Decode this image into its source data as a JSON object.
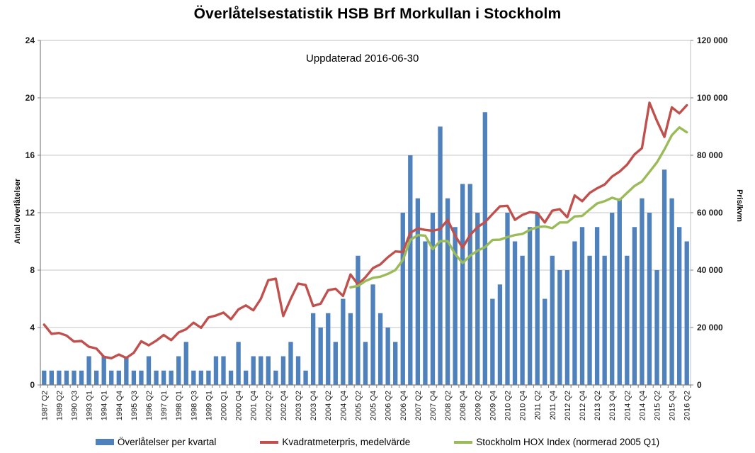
{
  "title": "Överlåtelsestatistik HSB Brf Morkullan i Stockholm",
  "subtitle": "Uppdaterad 2016-06-30",
  "colors": {
    "bar": "#4F81BD",
    "price_line": "#C0504D",
    "hox_line": "#9BBB59",
    "grid": "#C6C6C6",
    "border": "#BFBFBF",
    "axis": "#808080",
    "tick_text": "#1a1a1a"
  },
  "chart_data": {
    "type": "bar",
    "subtype": "combo: bars (left axis) + 2 lines (right axis)",
    "title": "Överlåtelsestatistik HSB Brf Morkullan i Stockholm",
    "annotation": "Uppdaterad 2016-06-30",
    "grid": true,
    "legend_position": "bottom",
    "categories": [
      "1987 Q2",
      "",
      "1989 Q2",
      "",
      "1990 Q3",
      "",
      "1993 Q1",
      "",
      "1994 Q1",
      "",
      "1994 Q4",
      "",
      "1995 Q3",
      "",
      "1996 Q2",
      "",
      "1997 Q1",
      "",
      "1998 Q1",
      "",
      "1998 Q3",
      "",
      "1999 Q1",
      "",
      "2000 Q1",
      "",
      "2000 Q4",
      "",
      "2001 Q4",
      "",
      "2002 Q2",
      "",
      "2002 Q4",
      "",
      "2003 Q2",
      "",
      "2003 Q4",
      "",
      "2004 Q2",
      "",
      "2004 Q4",
      "",
      "2005 Q2",
      "",
      "2005 Q4",
      "",
      "2006 Q2",
      "",
      "2006 Q4",
      "",
      "2007 Q2",
      "",
      "2007 Q4",
      "",
      "2008 Q2",
      "",
      "2008 Q4",
      "",
      "2009 Q2",
      "",
      "2009 Q4",
      "",
      "2010 Q2",
      "",
      "2010 Q4",
      "",
      "2011 Q2",
      "",
      "2011 Q4",
      "",
      "2012 Q2",
      "",
      "2012 Q4",
      "",
      "2013 Q2",
      "",
      "2013 Q4",
      "",
      "2014 Q2",
      "",
      "2014 Q4",
      "",
      "2015 Q2",
      "",
      "2015 Q4",
      "",
      "2016 Q2"
    ],
    "series": [
      {
        "name": "Överlåtelser per kvartal",
        "type": "bar",
        "axis": "left",
        "color": "#4F81BD",
        "values": [
          1,
          1,
          1,
          1,
          1,
          1,
          2,
          1,
          2,
          1,
          1,
          2,
          1,
          1,
          2,
          1,
          1,
          1,
          2,
          3,
          1,
          1,
          1,
          2,
          2,
          1,
          3,
          1,
          2,
          2,
          2,
          1,
          2,
          3,
          2,
          1,
          5,
          4,
          5,
          3,
          6,
          5,
          9,
          3,
          7,
          5,
          4,
          3,
          12,
          16,
          13,
          10,
          12,
          18,
          13,
          11,
          14,
          14,
          12,
          19,
          6,
          7,
          12,
          10,
          9,
          11,
          12,
          6,
          9,
          8,
          8,
          10,
          11,
          9,
          11,
          9,
          12,
          13,
          9,
          11,
          13,
          12,
          8,
          15,
          13,
          11,
          10
        ]
      },
      {
        "name": "Kvadratmeterpris, medelvärde",
        "type": "line",
        "axis": "right",
        "color": "#C0504D",
        "values": [
          21000,
          17800,
          18100,
          17200,
          15100,
          15300,
          13300,
          12700,
          9800,
          9300,
          10600,
          9400,
          11200,
          15200,
          13800,
          15400,
          17400,
          15600,
          18300,
          19400,
          21700,
          19900,
          23500,
          24200,
          25200,
          22900,
          26300,
          27700,
          26000,
          30000,
          36500,
          37000,
          24000,
          30000,
          35300,
          34800,
          27500,
          28300,
          33000,
          33500,
          31000,
          38500,
          35000,
          37500,
          40700,
          42000,
          44500,
          46500,
          46300,
          53000,
          54500,
          54000,
          53700,
          54300,
          57500,
          52000,
          47800,
          52200,
          55000,
          56700,
          59500,
          62200,
          62400,
          57500,
          59200,
          60200,
          59900,
          56600,
          60700,
          61200,
          58400,
          66000,
          64000,
          66900,
          68500,
          69800,
          72600,
          74300,
          76700,
          80300,
          82500,
          98300,
          92000,
          86400,
          96700,
          94600,
          97400
        ]
      },
      {
        "name": "Stockholm HOX Index (normerad 2005 Q1)",
        "type": "line",
        "axis": "right",
        "color": "#9BBB59",
        "values": [
          null,
          null,
          null,
          null,
          null,
          null,
          null,
          null,
          null,
          null,
          null,
          null,
          null,
          null,
          null,
          null,
          null,
          null,
          null,
          null,
          null,
          null,
          null,
          null,
          null,
          null,
          null,
          null,
          null,
          null,
          null,
          null,
          null,
          null,
          null,
          null,
          null,
          null,
          null,
          null,
          null,
          34000,
          34500,
          36200,
          37300,
          37700,
          38700,
          40000,
          43500,
          50500,
          52200,
          52000,
          47300,
          50100,
          50100,
          45600,
          42500,
          45000,
          46800,
          48000,
          50500,
          50600,
          51500,
          52200,
          52600,
          54000,
          55000,
          55200,
          54600,
          56600,
          56600,
          58700,
          58900,
          61100,
          63200,
          64000,
          65200,
          64400,
          66900,
          69300,
          70900,
          74200,
          77500,
          82000,
          87000,
          89700,
          88000
        ]
      }
    ],
    "left_axis": {
      "title": "Antal överlåtelser",
      "min": 0,
      "max": 24,
      "step": 4,
      "ticks": [
        0,
        4,
        8,
        12,
        16,
        20,
        24
      ],
      "tick_labels": [
        "0",
        "4",
        "8",
        "12",
        "16",
        "20",
        "24"
      ]
    },
    "right_axis": {
      "title": "Pris/kvm",
      "min": 0,
      "max": 120000,
      "step": 20000,
      "ticks": [
        0,
        20000,
        40000,
        60000,
        80000,
        100000,
        120000
      ],
      "tick_labels": [
        "0",
        "20 000",
        "40 000",
        "60 000",
        "80 000",
        "100 000",
        "120 000"
      ]
    }
  },
  "legend": {
    "items": [
      {
        "label": "Överlåtelser per kvartal",
        "marker": "bar-swatch",
        "color": "#4F81BD"
      },
      {
        "label": "Kvadratmeterpris, medelvärde",
        "marker": "line-swatch",
        "color": "#C0504D"
      },
      {
        "label": "Stockholm HOX Index (normerad 2005 Q1)",
        "marker": "line-swatch",
        "color": "#9BBB59"
      }
    ]
  }
}
